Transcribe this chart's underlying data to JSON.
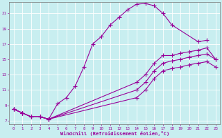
{
  "xlabel": "Windchill (Refroidissement éolien,°C)",
  "bg_color": "#c8eef0",
  "grid_color": "#aacccc",
  "line_color": "#990099",
  "xlim": [
    -0.5,
    23.5
  ],
  "ylim": [
    6.5,
    22.5
  ],
  "xticks": [
    0,
    1,
    2,
    3,
    4,
    5,
    6,
    7,
    8,
    9,
    10,
    11,
    12,
    13,
    14,
    15,
    16,
    17,
    18,
    19,
    20,
    21,
    22,
    23
  ],
  "yticks": [
    7,
    9,
    11,
    13,
    15,
    17,
    19,
    21
  ],
  "series1_x": [
    0,
    1,
    2,
    3,
    4,
    5,
    6,
    7,
    8,
    9,
    10,
    11,
    12,
    13,
    14,
    15,
    16,
    17,
    18,
    21,
    22
  ],
  "series1_y": [
    8.5,
    8.0,
    7.5,
    7.5,
    7.2,
    9.2,
    10.0,
    11.5,
    14.0,
    17.0,
    18.0,
    19.5,
    20.5,
    21.5,
    22.2,
    22.3,
    22.0,
    21.0,
    19.5,
    17.3,
    17.5
  ],
  "series2_x": [
    0,
    1,
    2,
    3,
    4,
    14,
    15,
    16,
    17,
    18,
    19,
    20,
    21,
    22,
    23
  ],
  "series2_y": [
    8.5,
    8.0,
    7.5,
    7.5,
    7.2,
    12.0,
    13.0,
    14.5,
    15.5,
    15.5,
    15.8,
    16.0,
    16.2,
    16.5,
    15.0
  ],
  "series3_x": [
    0,
    1,
    2,
    3,
    4,
    14,
    15,
    16,
    17,
    18,
    19,
    20,
    21,
    22,
    23
  ],
  "series3_y": [
    8.5,
    8.0,
    7.5,
    7.5,
    7.2,
    11.0,
    12.0,
    13.5,
    14.5,
    14.8,
    15.0,
    15.3,
    15.5,
    15.7,
    15.0
  ],
  "series4_x": [
    0,
    1,
    2,
    3,
    4,
    14,
    15,
    16,
    17,
    18,
    19,
    20,
    21,
    22,
    23
  ],
  "series4_y": [
    8.5,
    8.0,
    7.5,
    7.5,
    7.2,
    10.0,
    11.0,
    12.5,
    13.5,
    13.8,
    14.0,
    14.3,
    14.5,
    14.7,
    14.0
  ]
}
